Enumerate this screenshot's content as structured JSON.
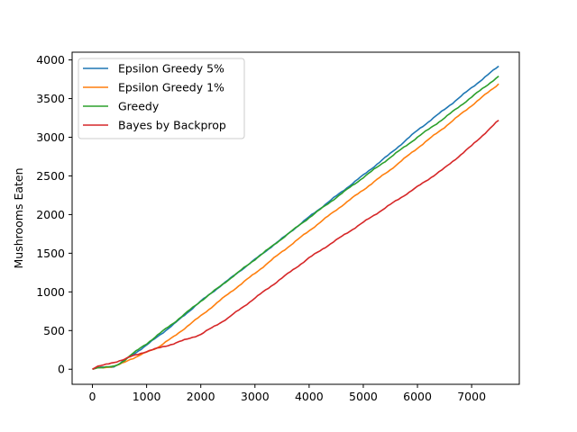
{
  "chart_data": {
    "type": "line",
    "title": "",
    "xlabel": "",
    "ylabel": "Mushrooms Eaten",
    "xlim": [
      -375,
      7880
    ],
    "ylim": [
      -195,
      4100
    ],
    "xticks": [
      0,
      1000,
      2000,
      3000,
      4000,
      5000,
      6000,
      7000
    ],
    "yticks": [
      0,
      500,
      1000,
      1500,
      2000,
      2500,
      3000,
      3500,
      4000
    ],
    "grid": false,
    "legend_position": "upper-left",
    "series": [
      {
        "name": "Epsilon Greedy 5%",
        "color": "#1f77b4",
        "x": [
          0,
          100,
          200,
          300,
          400,
          500,
          600,
          700,
          800,
          1000,
          1200,
          1500,
          2000,
          2500,
          3000,
          3500,
          4000,
          4500,
          5000,
          5500,
          6000,
          6500,
          7000,
          7500
        ],
        "y": [
          0,
          20,
          25,
          28,
          35,
          70,
          120,
          170,
          215,
          310,
          420,
          580,
          880,
          1150,
          1420,
          1690,
          1970,
          2240,
          2510,
          2790,
          3090,
          3360,
          3640,
          3920
        ]
      },
      {
        "name": "Epsilon Greedy 1%",
        "color": "#ff7f0e",
        "x": [
          0,
          100,
          200,
          300,
          400,
          500,
          600,
          700,
          800,
          1000,
          1200,
          1500,
          2000,
          2500,
          3000,
          3500,
          4000,
          4500,
          5000,
          5500,
          6000,
          6500,
          7000,
          7500
        ],
        "y": [
          0,
          20,
          25,
          28,
          35,
          60,
          95,
          130,
          155,
          220,
          280,
          420,
          690,
          970,
          1240,
          1520,
          1790,
          2060,
          2320,
          2580,
          2860,
          3130,
          3410,
          3690
        ]
      },
      {
        "name": "Greedy",
        "color": "#2ca02c",
        "x": [
          0,
          100,
          200,
          300,
          400,
          500,
          600,
          700,
          800,
          1000,
          1200,
          1500,
          2000,
          2500,
          3000,
          3500,
          4000,
          4500,
          5000,
          5500,
          6000,
          6500,
          7000,
          7500
        ],
        "y": [
          0,
          20,
          25,
          28,
          35,
          70,
          120,
          180,
          230,
          330,
          440,
          600,
          880,
          1150,
          1420,
          1690,
          1960,
          2220,
          2480,
          2740,
          3000,
          3250,
          3520,
          3790
        ]
      },
      {
        "name": "Bayes by Backprop",
        "color": "#d62728",
        "x": [
          0,
          100,
          200,
          300,
          400,
          500,
          600,
          700,
          800,
          1000,
          1200,
          1500,
          2000,
          2500,
          3000,
          3500,
          4000,
          4500,
          5000,
          5500,
          6000,
          6500,
          7000,
          7500
        ],
        "y": [
          0,
          40,
          50,
          70,
          90,
          110,
          130,
          160,
          185,
          230,
          270,
          330,
          450,
          660,
          920,
          1180,
          1440,
          1670,
          1900,
          2130,
          2360,
          2600,
          2890,
          3220
        ]
      }
    ]
  }
}
